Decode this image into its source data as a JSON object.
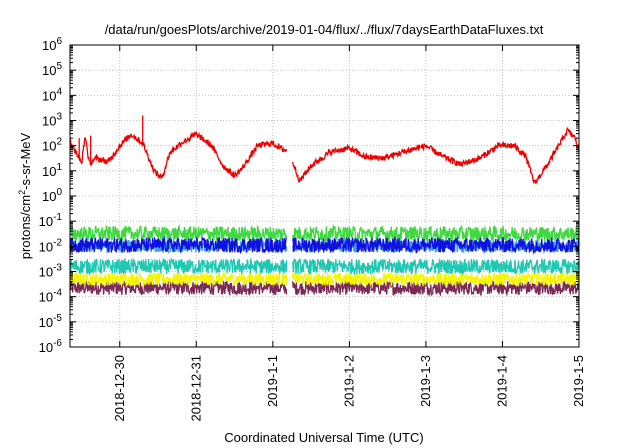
{
  "chart_data": {
    "type": "line",
    "title": "/data/run/goesPlots/archive/2019-01-04/flux/../flux/7daysEarthDataFluxes.txt",
    "xlabel": "Coordinated Universal Time (UTC)",
    "ylabel": {
      "base": "protons/cm",
      "sup": "2",
      "tail": "-s-sr-MeV"
    },
    "x_unit": "days from 2018-12-29 00:00 UTC",
    "xlim": [
      0.35,
      7.0
    ],
    "y_scale": "log",
    "ylim_exp": [
      -6,
      6
    ],
    "grid": true,
    "legend": "none",
    "data_gap": [
      3.18,
      3.26
    ],
    "x_ticks": [
      {
        "x": 1,
        "label": "2018-12-30"
      },
      {
        "x": 2,
        "label": "2018-12-31"
      },
      {
        "x": 3,
        "label": "2019-1-1"
      },
      {
        "x": 4,
        "label": "2019-1-2"
      },
      {
        "x": 5,
        "label": "2019-1-3"
      },
      {
        "x": 6,
        "label": "2019-1-4"
      },
      {
        "x": 7,
        "label": "2019-1-5"
      }
    ],
    "y_ticks": [
      {
        "exp": -6,
        "label": "10",
        "sup": "-6"
      },
      {
        "exp": -5,
        "label": "10",
        "sup": "-5"
      },
      {
        "exp": -4,
        "label": "10",
        "sup": "-4"
      },
      {
        "exp": -3,
        "label": "10",
        "sup": "-3"
      },
      {
        "exp": -2,
        "label": "10",
        "sup": "-2"
      },
      {
        "exp": -1,
        "label": "10",
        "sup": "-1"
      },
      {
        "exp": 0,
        "label": "10",
        "sup": "0"
      },
      {
        "exp": 1,
        "label": "10",
        "sup": "1"
      },
      {
        "exp": 2,
        "label": "10",
        "sup": "2"
      },
      {
        "exp": 3,
        "label": "10",
        "sup": "3"
      },
      {
        "exp": 4,
        "label": "10",
        "sup": "4"
      },
      {
        "exp": 5,
        "label": "10",
        "sup": "5"
      },
      {
        "exp": 6,
        "label": "10",
        "sup": "6"
      }
    ],
    "series": [
      {
        "color": "#7a2a55",
        "noise_decades": 0.28,
        "x": [
          0.35,
          1.0,
          2.0,
          3.0,
          3.18,
          3.26,
          4.0,
          5.0,
          6.0,
          7.0
        ],
        "y_exp": [
          -3.65,
          -3.65,
          -3.65,
          -3.65,
          -3.65,
          -3.65,
          -3.65,
          -3.65,
          -3.65,
          -3.65
        ]
      },
      {
        "color": "#f5f500",
        "noise_decades": 0.25,
        "x": [
          0.35,
          1.0,
          2.0,
          3.0,
          3.18,
          3.26,
          4.0,
          5.0,
          6.0,
          7.0
        ],
        "y_exp": [
          -3.3,
          -3.3,
          -3.3,
          -3.3,
          -3.3,
          -3.3,
          -3.3,
          -3.3,
          -3.3,
          -3.3
        ]
      },
      {
        "color": "#20c8b4",
        "noise_decades": 0.3,
        "x": [
          0.35,
          1.0,
          2.0,
          3.0,
          3.18,
          3.26,
          4.0,
          5.0,
          6.0,
          7.0
        ],
        "y_exp": [
          -2.8,
          -2.8,
          -2.8,
          -2.8,
          -2.8,
          -2.8,
          -2.8,
          -2.8,
          -2.8,
          -2.8
        ]
      },
      {
        "color": "#40d840",
        "noise_decades": 0.3,
        "x": [
          0.35,
          1.0,
          2.0,
          3.0,
          3.18,
          3.26,
          4.0,
          5.0,
          6.0,
          7.0
        ],
        "y_exp": [
          -1.5,
          -1.5,
          -1.5,
          -1.5,
          -1.5,
          -1.5,
          -1.5,
          -1.5,
          -1.5,
          -1.5
        ]
      },
      {
        "color": "#3aa0f0",
        "noise_decades": 0.25,
        "x": [
          0.35,
          1.0,
          2.0,
          3.0,
          3.18,
          3.26,
          4.0,
          5.0,
          6.0,
          7.0
        ],
        "y_exp": [
          -2.0,
          -2.0,
          -2.0,
          -2.0,
          -2.0,
          -2.0,
          -2.0,
          -2.0,
          -2.0,
          -2.0
        ]
      },
      {
        "color": "#1010e0",
        "noise_decades": 0.3,
        "x": [
          0.35,
          1.0,
          2.0,
          3.0,
          3.18,
          3.26,
          4.0,
          5.0,
          6.0,
          7.0
        ],
        "y_exp": [
          -1.95,
          -1.95,
          -1.95,
          -1.95,
          -1.95,
          -1.95,
          -1.95,
          -1.95,
          -1.95,
          -1.95
        ]
      },
      {
        "color": "#ee0000",
        "noise_decades": 0.12,
        "x": [
          0.35,
          0.5,
          0.55,
          0.6,
          0.7,
          0.85,
          1.0,
          1.15,
          1.3,
          1.45,
          1.55,
          1.65,
          1.8,
          2.0,
          2.2,
          2.35,
          2.5,
          2.6,
          2.8,
          3.0,
          3.1,
          3.18,
          3.26,
          3.35,
          3.5,
          3.75,
          4.0,
          4.2,
          4.45,
          4.7,
          5.0,
          5.2,
          5.45,
          5.7,
          5.95,
          6.15,
          6.3,
          6.42,
          6.6,
          6.85,
          6.95,
          7.0
        ],
        "y_exp": [
          2.2,
          1.3,
          2.4,
          1.3,
          1.5,
          1.35,
          2.0,
          2.45,
          2.1,
          1.0,
          0.7,
          1.7,
          2.1,
          2.45,
          2.0,
          1.2,
          0.8,
          1.1,
          2.0,
          2.1,
          1.9,
          1.8,
          1.35,
          0.6,
          1.2,
          1.75,
          1.9,
          1.55,
          1.5,
          1.75,
          2.0,
          1.6,
          1.25,
          1.5,
          2.0,
          2.0,
          1.6,
          0.5,
          1.3,
          2.6,
          2.3,
          1.8
        ]
      }
    ],
    "spikes": [
      {
        "x": 0.62,
        "y_exp": 2.4,
        "color": "#ee0000"
      },
      {
        "x": 1.3,
        "y_exp": 3.2,
        "color": "#ee0000"
      },
      {
        "x": 0.47,
        "y_exp": 2.3,
        "color": "#ee0000"
      }
    ]
  }
}
